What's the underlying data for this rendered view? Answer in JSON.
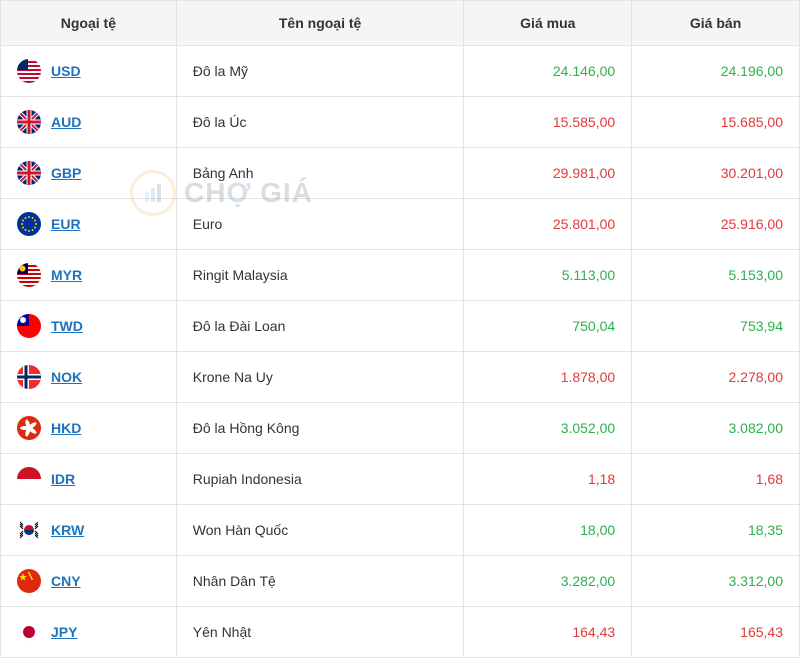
{
  "headers": {
    "currency": "Ngoại tệ",
    "name": "Tên ngoại tệ",
    "buy": "Giá mua",
    "sell": "Giá bán"
  },
  "colors": {
    "up": "#2bb14c",
    "down": "#e03a3a",
    "code": "#1e73be",
    "header_bg": "#f5f5f5",
    "border": "#e4e4e4"
  },
  "watermark": {
    "text_left": "CH",
    "text_right": "GIÁ",
    "o_accent": "Ợ"
  },
  "rows": [
    {
      "code": "USD",
      "name": "Đô la Mỹ",
      "buy": "24.146,00",
      "buy_dir": "up",
      "sell": "24.196,00",
      "sell_dir": "up",
      "flag": {
        "bg": "#bf0a30",
        "stripes": "#fff",
        "canton": "#002868"
      }
    },
    {
      "code": "AUD",
      "name": "Đô la Úc",
      "buy": "15.585,00",
      "buy_dir": "down",
      "sell": "15.685,00",
      "sell_dir": "down",
      "flag": {
        "bg": "#00247d"
      }
    },
    {
      "code": "GBP",
      "name": "Bảng Anh",
      "buy": "29.981,00",
      "buy_dir": "down",
      "sell": "30.201,00",
      "sell_dir": "down",
      "flag": {
        "bg": "#00247d"
      }
    },
    {
      "code": "EUR",
      "name": "Euro",
      "buy": "25.801,00",
      "buy_dir": "down",
      "sell": "25.916,00",
      "sell_dir": "down",
      "flag": {
        "bg": "#003399"
      }
    },
    {
      "code": "MYR",
      "name": "Ringit Malaysia",
      "buy": "5.113,00",
      "buy_dir": "up",
      "sell": "5.153,00",
      "sell_dir": "up",
      "flag": {
        "bg": "#cc0001",
        "stripes": "#fff",
        "canton": "#010066"
      }
    },
    {
      "code": "TWD",
      "name": "Đô la Đài Loan",
      "buy": "750,04",
      "buy_dir": "up",
      "sell": "753,94",
      "sell_dir": "up",
      "flag": {
        "bg": "#fe0000",
        "canton": "#000095"
      }
    },
    {
      "code": "NOK",
      "name": "Krone Na Uy",
      "buy": "1.878,00",
      "buy_dir": "down",
      "sell": "2.278,00",
      "sell_dir": "down",
      "flag": {
        "bg": "#ef2b2d"
      }
    },
    {
      "code": "HKD",
      "name": "Đô la Hồng Kông",
      "buy": "3.052,00",
      "buy_dir": "up",
      "sell": "3.082,00",
      "sell_dir": "up",
      "flag": {
        "bg": "#de2910"
      }
    },
    {
      "code": "IDR",
      "name": "Rupiah Indonesia",
      "buy": "1,18",
      "buy_dir": "down",
      "sell": "1,68",
      "sell_dir": "down",
      "flag": {
        "top": "#ce1126",
        "bottom": "#ffffff"
      }
    },
    {
      "code": "KRW",
      "name": "Won Hàn Quốc",
      "buy": "18,00",
      "buy_dir": "up",
      "sell": "18,35",
      "sell_dir": "up",
      "flag": {
        "bg": "#ffffff"
      }
    },
    {
      "code": "CNY",
      "name": "Nhân Dân Tệ",
      "buy": "3.282,00",
      "buy_dir": "up",
      "sell": "3.312,00",
      "sell_dir": "up",
      "flag": {
        "bg": "#de2910"
      }
    },
    {
      "code": "JPY",
      "name": "Yên Nhật",
      "buy": "164,43",
      "buy_dir": "down",
      "sell": "165,43",
      "sell_dir": "down",
      "flag": {
        "bg": "#ffffff",
        "dot": "#bc002d"
      }
    }
  ]
}
